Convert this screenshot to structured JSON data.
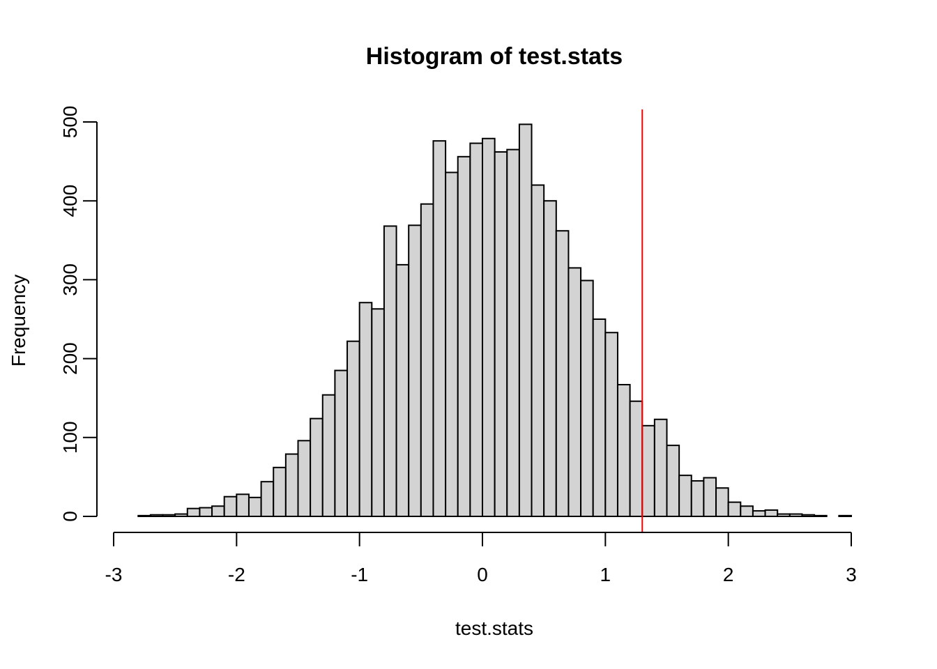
{
  "chart_data": {
    "type": "bar",
    "title": "Histogram of test.stats",
    "xlabel": "test.stats",
    "ylabel": "Frequency",
    "xlim": [
      -3,
      3
    ],
    "ylim": [
      0,
      500
    ],
    "x_ticks": [
      -3,
      -2,
      -1,
      0,
      1,
      2,
      3
    ],
    "y_ticks": [
      0,
      100,
      200,
      300,
      400,
      500
    ],
    "bin_width": 0.1,
    "bin_start": -2.8,
    "values": [
      1,
      2,
      2,
      3,
      10,
      11,
      13,
      25,
      28,
      24,
      44,
      62,
      79,
      96,
      124,
      154,
      185,
      222,
      271,
      263,
      368,
      319,
      369,
      396,
      476,
      436,
      456,
      473,
      479,
      462,
      465,
      497,
      420,
      400,
      362,
      315,
      299,
      250,
      233,
      167,
      146,
      115,
      123,
      90,
      52,
      45,
      49,
      36,
      18,
      13,
      7,
      8,
      3,
      3,
      2,
      1,
      0,
      1
    ],
    "reference_line": {
      "x": 1.3,
      "color": "#ff0000"
    },
    "bar_fill": "#d3d3d3",
    "bar_stroke": "#000000",
    "grid": false,
    "legend": "none"
  }
}
